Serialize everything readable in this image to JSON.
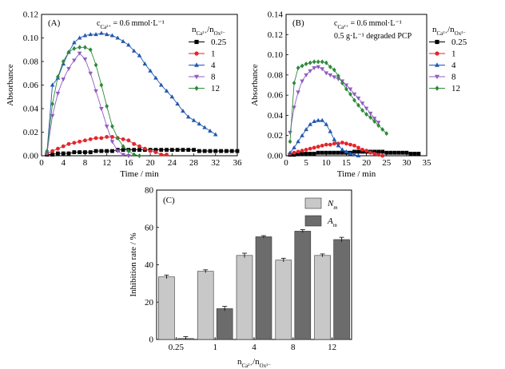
{
  "chart_data": [
    {
      "id": "A",
      "type": "line",
      "panel_label": "(A)",
      "title": "",
      "xlabel": "Time / min",
      "ylabel": "Absorbance",
      "xlim": [
        0,
        36
      ],
      "ylim": [
        0,
        0.12
      ],
      "xticks": [
        0,
        4,
        8,
        12,
        16,
        20,
        24,
        28,
        32,
        36
      ],
      "yticks": [
        0,
        0.02,
        0.04,
        0.06,
        0.08,
        0.1,
        0.12
      ],
      "ytick_labels": [
        "0.00",
        "0.02",
        "0.04",
        "0.06",
        "0.08",
        "0.10",
        "0.12"
      ],
      "annotations": [
        "c_Ca²⁺ = 0.6 mmol·L⁻¹"
      ],
      "legend_title": "n_Ca²⁺/n_Ox²⁻",
      "legend_position": "right",
      "series": [
        {
          "name": "0.25",
          "color": "#000000",
          "marker": "square",
          "x": [
            1,
            2,
            3,
            4,
            5,
            6,
            7,
            8,
            9,
            10,
            11,
            12,
            13,
            14,
            15,
            16,
            17,
            18,
            19,
            20,
            21,
            22,
            23,
            24,
            25,
            26,
            27,
            28,
            29,
            30,
            31,
            32,
            33,
            34,
            35,
            36
          ],
          "y": [
            0.001,
            0.001,
            0.002,
            0.002,
            0.002,
            0.003,
            0.003,
            0.003,
            0.003,
            0.004,
            0.004,
            0.004,
            0.004,
            0.005,
            0.005,
            0.005,
            0.005,
            0.005,
            0.005,
            0.005,
            0.005,
            0.005,
            0.005,
            0.005,
            0.005,
            0.005,
            0.005,
            0.005,
            0.004,
            0.004,
            0.004,
            0.004,
            0.004,
            0.004,
            0.004,
            0.004
          ]
        },
        {
          "name": "1",
          "color": "#e3262b",
          "marker": "circle",
          "x": [
            1,
            2,
            3,
            4,
            5,
            6,
            7,
            8,
            9,
            10,
            11,
            12,
            13,
            14,
            15,
            16,
            17,
            18,
            19,
            20,
            21,
            22,
            23
          ],
          "y": [
            0.002,
            0.004,
            0.006,
            0.008,
            0.01,
            0.011,
            0.012,
            0.013,
            0.014,
            0.015,
            0.015,
            0.016,
            0.016,
            0.015,
            0.014,
            0.013,
            0.01,
            0.008,
            0.006,
            0.004,
            0.003,
            0.001,
            0.001
          ]
        },
        {
          "name": "4",
          "color": "#2258b0",
          "marker": "triangle-up",
          "x": [
            1,
            2,
            3,
            4,
            5,
            6,
            7,
            8,
            9,
            10,
            11,
            12,
            13,
            14,
            15,
            16,
            17,
            18,
            19,
            20,
            21,
            22,
            23,
            24,
            25,
            26,
            27,
            28,
            29,
            30,
            31,
            32
          ],
          "y": [
            0.003,
            0.06,
            0.066,
            0.078,
            0.088,
            0.096,
            0.1,
            0.102,
            0.103,
            0.103,
            0.104,
            0.103,
            0.102,
            0.1,
            0.097,
            0.094,
            0.089,
            0.085,
            0.078,
            0.072,
            0.066,
            0.06,
            0.055,
            0.05,
            0.044,
            0.038,
            0.033,
            0.03,
            0.027,
            0.024,
            0.021,
            0.018
          ]
        },
        {
          "name": "8",
          "color": "#8f5cc2",
          "marker": "triangle-down",
          "x": [
            1,
            2,
            3,
            4,
            5,
            6,
            7,
            8,
            9,
            10,
            11,
            12,
            13,
            14,
            15,
            16
          ],
          "y": [
            0.002,
            0.034,
            0.053,
            0.065,
            0.074,
            0.081,
            0.087,
            0.082,
            0.07,
            0.055,
            0.04,
            0.025,
            0.012,
            0.004,
            0.001,
            0.0
          ]
        },
        {
          "name": "12",
          "color": "#2f8a3c",
          "marker": "diamond",
          "x": [
            1,
            2,
            3,
            4,
            5,
            6,
            7,
            8,
            9,
            10,
            11,
            12,
            13,
            14,
            15,
            16,
            17,
            18
          ],
          "y": [
            0.004,
            0.044,
            0.067,
            0.08,
            0.088,
            0.091,
            0.092,
            0.092,
            0.09,
            0.077,
            0.06,
            0.042,
            0.025,
            0.015,
            0.008,
            0.004,
            0.001,
            0.0
          ]
        }
      ]
    },
    {
      "id": "B",
      "type": "line",
      "panel_label": "(B)",
      "title": "",
      "xlabel": "Time / min",
      "ylabel": "Absorbance",
      "xlim": [
        0,
        35
      ],
      "ylim": [
        0,
        0.14
      ],
      "xticks": [
        0,
        5,
        10,
        15,
        20,
        25,
        30,
        35
      ],
      "yticks": [
        0,
        0.02,
        0.04,
        0.06,
        0.08,
        0.1,
        0.12,
        0.14
      ],
      "ytick_labels": [
        "0.00",
        "0.02",
        "0.04",
        "0.06",
        "0.08",
        "0.10",
        "0.12",
        "0.14"
      ],
      "annotations": [
        "c_Ca²⁺ = 0.6 mmol·L⁻¹",
        "0.5 g·L⁻¹ degraded PCP"
      ],
      "legend_title": "n_Ca²⁺/n_Ox²⁻",
      "legend_position": "right",
      "series": [
        {
          "name": "0.25",
          "color": "#000000",
          "marker": "square",
          "x": [
            1,
            2,
            3,
            4,
            5,
            6,
            7,
            8,
            9,
            10,
            11,
            12,
            13,
            14,
            15,
            16,
            17,
            18,
            19,
            20,
            21,
            22,
            23,
            24,
            25,
            26,
            27,
            28,
            29,
            30,
            31,
            32,
            33
          ],
          "y": [
            0.001,
            0.001,
            0.002,
            0.002,
            0.002,
            0.002,
            0.002,
            0.003,
            0.003,
            0.003,
            0.003,
            0.003,
            0.003,
            0.003,
            0.003,
            0.003,
            0.004,
            0.004,
            0.004,
            0.004,
            0.004,
            0.004,
            0.004,
            0.004,
            0.003,
            0.003,
            0.003,
            0.003,
            0.003,
            0.003,
            0.002,
            0.002,
            0.002
          ]
        },
        {
          "name": "1",
          "color": "#e3262b",
          "marker": "circle",
          "x": [
            1,
            2,
            3,
            4,
            5,
            6,
            7,
            8,
            9,
            10,
            11,
            12,
            13,
            14,
            15,
            16,
            17,
            18,
            19,
            20,
            21,
            22,
            23,
            24
          ],
          "y": [
            0.002,
            0.003,
            0.004,
            0.005,
            0.006,
            0.007,
            0.008,
            0.009,
            0.01,
            0.011,
            0.011,
            0.012,
            0.012,
            0.013,
            0.012,
            0.011,
            0.01,
            0.008,
            0.006,
            0.005,
            0.003,
            0.002,
            0.001,
            0.0
          ]
        },
        {
          "name": "4",
          "color": "#2258b0",
          "marker": "triangle-up",
          "x": [
            1,
            2,
            3,
            4,
            5,
            6,
            7,
            8,
            9,
            10,
            11,
            12,
            13,
            14,
            15,
            16,
            17,
            18
          ],
          "y": [
            0.003,
            0.008,
            0.014,
            0.02,
            0.026,
            0.031,
            0.034,
            0.035,
            0.035,
            0.031,
            0.024,
            0.016,
            0.01,
            0.006,
            0.004,
            0.002,
            0.001,
            0.0
          ]
        },
        {
          "name": "8",
          "color": "#8f5cc2",
          "marker": "triangle-down",
          "x": [
            1,
            2,
            3,
            4,
            5,
            6,
            7,
            8,
            9,
            10,
            11,
            12,
            13,
            14,
            15,
            16,
            17,
            18,
            19,
            20,
            21,
            22,
            23
          ],
          "y": [
            0.023,
            0.048,
            0.063,
            0.074,
            0.08,
            0.084,
            0.087,
            0.088,
            0.086,
            0.082,
            0.08,
            0.078,
            0.076,
            0.074,
            0.07,
            0.066,
            0.061,
            0.057,
            0.052,
            0.047,
            0.042,
            0.037,
            0.033
          ]
        },
        {
          "name": "12",
          "color": "#2f8a3c",
          "marker": "diamond",
          "x": [
            1,
            2,
            3,
            4,
            5,
            6,
            7,
            8,
            9,
            10,
            11,
            12,
            13,
            14,
            15,
            16,
            17,
            18,
            19,
            20,
            21,
            22,
            23,
            24,
            25
          ],
          "y": [
            0.014,
            0.072,
            0.087,
            0.089,
            0.091,
            0.092,
            0.093,
            0.093,
            0.093,
            0.092,
            0.088,
            0.085,
            0.079,
            0.072,
            0.066,
            0.061,
            0.055,
            0.05,
            0.045,
            0.041,
            0.038,
            0.034,
            0.03,
            0.026,
            0.022
          ]
        }
      ]
    },
    {
      "id": "C",
      "type": "bar",
      "panel_label": "(C)",
      "title": "",
      "xlabel": "n_Ca²⁺/n_Ox²⁻",
      "ylabel": "Inhibition rate / %",
      "ylim": [
        0,
        80
      ],
      "yticks": [
        0,
        20,
        40,
        60,
        80
      ],
      "categories": [
        "0.25",
        "1",
        "4",
        "8",
        "12"
      ],
      "legend_position": "top-right",
      "series": [
        {
          "name": "N_m",
          "color": "#c8c8c8",
          "values": [
            33.5,
            36.5,
            45.0,
            42.5,
            45.0
          ],
          "errors": [
            1.0,
            0.8,
            1.2,
            1.0,
            0.8
          ]
        },
        {
          "name": "A_m",
          "color": "#6c6c6c",
          "values": [
            0.5,
            16.5,
            55.0,
            58.0,
            53.5
          ],
          "errors": [
            1.0,
            1.2,
            0.6,
            0.8,
            1.2
          ]
        }
      ]
    }
  ]
}
